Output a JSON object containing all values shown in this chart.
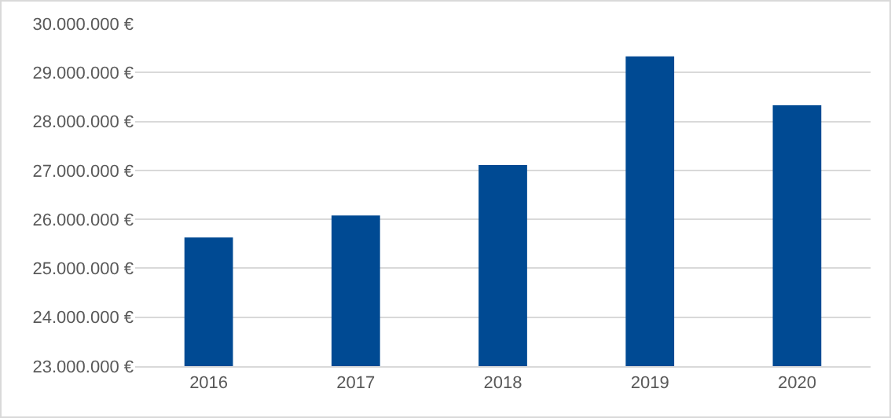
{
  "chart_data": {
    "type": "bar",
    "categories": [
      "2016",
      "2017",
      "2018",
      "2019",
      "2020"
    ],
    "values": [
      25630000,
      26080000,
      27110000,
      29330000,
      28330000
    ],
    "color": "#004a93",
    "ylim": [
      23000000,
      30000000
    ],
    "yticks": [
      {
        "value": 23000000,
        "label": "23.000.000 €"
      },
      {
        "value": 24000000,
        "label": "24.000.000 €"
      },
      {
        "value": 25000000,
        "label": "25.000.000 €"
      },
      {
        "value": 26000000,
        "label": "26.000.000 €"
      },
      {
        "value": 27000000,
        "label": "27.000.000 €"
      },
      {
        "value": 28000000,
        "label": "28.000.000 €"
      },
      {
        "value": 29000000,
        "label": "29.000.000 €"
      },
      {
        "value": 30000000,
        "label": "30.000.000 €"
      }
    ],
    "grid": "y"
  }
}
